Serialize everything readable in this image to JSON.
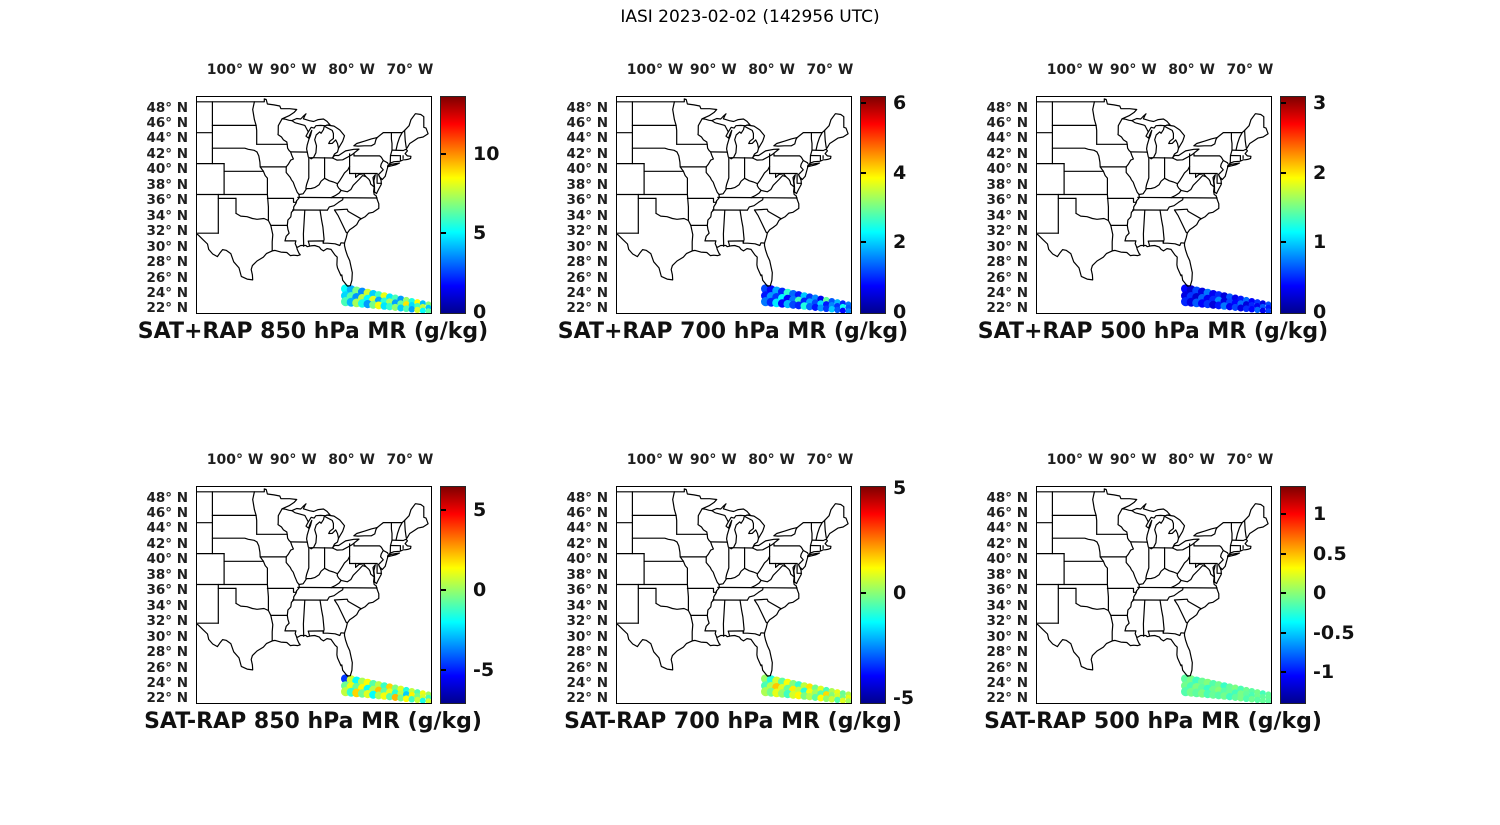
{
  "figure_title": "IASI 2023-02-02 (142956 UTC)",
  "colors": {
    "background": "#ffffff",
    "map_line": "#000000",
    "tick_label": "#1f1f1f",
    "title": "#000000",
    "colormap": "jet"
  },
  "axes": {
    "lon_tick_labels": [
      "100° W",
      "90° W",
      "80° W",
      "70° W"
    ],
    "lon_tick_values_w": [
      100,
      90,
      80,
      70
    ],
    "lat_tick_labels": [
      "48° N",
      "46° N",
      "44° N",
      "42° N",
      "40° N",
      "38° N",
      "36° N",
      "34° N",
      "32° N",
      "30° N",
      "28° N",
      "26° N",
      "24° N",
      "22° N"
    ],
    "lat_tick_values_n": [
      48,
      46,
      44,
      42,
      40,
      38,
      36,
      34,
      32,
      30,
      28,
      26,
      24,
      22
    ],
    "lon_range_w": [
      106.7,
      66.55
    ],
    "lat_range_n": [
      21.67,
      49.62
    ]
  },
  "panels": [
    {
      "title": "SAT+RAP 850 hPa MR (g/kg)",
      "row": 0,
      "col": 0,
      "values_key": "sat_850",
      "colorbar": {
        "min": 0,
        "max": 13.7,
        "ticks": [
          0,
          5,
          10
        ]
      }
    },
    {
      "title": "SAT+RAP 700 hPa MR (g/kg)",
      "row": 0,
      "col": 1,
      "values_key": "sat_700",
      "colorbar": {
        "min": 0,
        "max": 6.2,
        "ticks": [
          0,
          2,
          4,
          6
        ]
      }
    },
    {
      "title": "SAT+RAP 500 hPa MR (g/kg)",
      "row": 0,
      "col": 2,
      "values_key": "sat_500",
      "colorbar": {
        "min": 0,
        "max": 3.1,
        "ticks": [
          0,
          1,
          2,
          3
        ]
      }
    },
    {
      "title": "SAT-RAP 850 hPa MR (g/kg)",
      "row": 1,
      "col": 0,
      "values_key": "diff_850",
      "colorbar": {
        "min": -7.0,
        "max": 6.5,
        "ticks": [
          -5,
          0,
          5
        ]
      }
    },
    {
      "title": "SAT-RAP 700 hPa MR (g/kg)",
      "row": 1,
      "col": 1,
      "values_key": "diff_700",
      "colorbar": {
        "min": -5.2,
        "max": 5.1,
        "ticks": [
          -5,
          0,
          5
        ]
      }
    },
    {
      "title": "SAT-RAP 500 hPa MR (g/kg)",
      "row": 1,
      "col": 2,
      "values_key": "diff_500",
      "colorbar": {
        "min": -1.38,
        "max": 1.36,
        "ticks": [
          -1,
          -0.5,
          0,
          0.5,
          1
        ]
      }
    }
  ],
  "chart_data": {
    "type": "scatter",
    "units": "g/kg",
    "note": "IASI footprint swath southeast of Florida; same footprints in all six panels, colored by jet colormap over each panel colorbar range.",
    "swath": {
      "cols_lon_w": [
        81.2,
        80.25,
        79.31,
        78.36,
        77.41,
        76.47,
        75.52,
        74.57,
        73.63,
        72.68,
        71.73,
        70.79,
        69.84,
        68.89,
        67.95,
        67.0
      ],
      "rows_lat_n": {
        "a": [
          24.8,
          24.67,
          24.53,
          24.4,
          24.27,
          24.13,
          24.0,
          23.87,
          23.73,
          23.6,
          23.47,
          23.33,
          23.2,
          23.07,
          22.93,
          22.8
        ],
        "b": [
          23.9,
          23.8,
          23.69,
          23.59,
          23.49,
          23.38,
          23.28,
          23.18,
          23.08,
          22.97,
          22.87,
          22.77,
          22.66,
          22.56,
          22.46,
          22.35
        ],
        "c": [
          23.15,
          23.07,
          22.98,
          22.9,
          22.82,
          22.73,
          22.65,
          22.57,
          22.48,
          22.4,
          22.32,
          22.23,
          22.15,
          22.07,
          21.98,
          21.9
        ]
      },
      "radius_px": [
        4.6,
        4.49,
        4.37,
        4.26,
        4.15,
        4.03,
        3.92,
        3.81,
        3.69,
        3.58,
        3.47,
        3.35,
        3.24,
        3.13,
        3.01,
        2.9
      ],
      "values": {
        "sat_850": {
          "a": [
            5.2,
            4.1,
            6.8,
            3.6,
            7.9,
            4.5,
            5.9,
            8.3,
            4.9,
            6.1,
            3.8,
            7.2,
            5.5,
            8.6,
            4.3,
            6.9
          ],
          "b": [
            4.6,
            6.3,
            3.7,
            7.6,
            5.1,
            8.1,
            4.0,
            5.7,
            7.3,
            3.9,
            6.5,
            8.9,
            4.7,
            6.0,
            7.7,
            4.4
          ],
          "c": [
            6.1,
            4.2,
            7.4,
            5.4,
            3.8,
            6.7,
            8.4,
            4.8,
            5.8,
            7.1,
            4.5,
            6.2,
            3.9,
            8.0,
            5.2,
            6.4
          ]
        },
        "sat_700": {
          "a": [
            1.2,
            0.8,
            1.8,
            1.0,
            2.6,
            1.4,
            0.9,
            2.0,
            1.1,
            1.6,
            0.7,
            2.9,
            1.3,
            1.9,
            1.0,
            1.5
          ],
          "b": [
            0.9,
            1.7,
            1.1,
            2.3,
            0.8,
            1.5,
            2.7,
            1.0,
            1.8,
            1.2,
            2.1,
            0.9,
            1.6,
            1.1,
            2.4,
            1.3
          ],
          "c": [
            1.5,
            1.0,
            2.2,
            0.8,
            1.9,
            1.2,
            1.0,
            2.5,
            1.4,
            0.9,
            1.7,
            1.1,
            2.0,
            1.3,
            0.8,
            1.6
          ]
        },
        "sat_500": {
          "a": [
            0.4,
            0.25,
            0.6,
            0.3,
            0.75,
            0.35,
            0.5,
            0.28,
            0.65,
            0.33,
            0.45,
            0.7,
            0.38,
            0.55,
            0.3,
            0.62
          ],
          "b": [
            0.3,
            0.55,
            0.25,
            0.68,
            0.35,
            0.5,
            0.8,
            0.3,
            0.6,
            0.4,
            0.72,
            0.28,
            0.5,
            0.35,
            0.65,
            0.45
          ],
          "c": [
            0.5,
            0.3,
            0.66,
            0.38,
            0.55,
            0.28,
            0.45,
            0.75,
            0.35,
            0.6,
            0.3,
            0.52,
            0.4,
            0.7,
            0.33,
            0.58
          ]
        },
        "diff_850": {
          "a": [
            -4.6,
            0.8,
            -1.9,
            0.3,
            1.4,
            -0.8,
            0.5,
            -1.2,
            2.0,
            -0.3,
            1.0,
            -1.5,
            0.6,
            -0.9,
            1.2,
            0.2
          ],
          "b": [
            -0.5,
            1.2,
            -0.6,
            1.5,
            -1.8,
            0.4,
            2.2,
            -0.7,
            1.1,
            -1.4,
            0.5,
            -2.6,
            1.6,
            -0.4,
            0.9,
            -1.0
          ],
          "c": [
            0.6,
            -1.3,
            2.0,
            -0.5,
            1.0,
            -1.9,
            0.3,
            1.3,
            -0.8,
            2.4,
            -0.4,
            1.4,
            -1.1,
            0.7,
            -1.6,
            0.8
          ]
        },
        "diff_700": {
          "a": [
            0.2,
            -1.0,
            0.8,
            -0.4,
            1.2,
            0.0,
            -0.8,
            0.6,
            1.5,
            -0.2,
            0.9,
            -0.6,
            0.4,
            1.0,
            -0.3,
            0.5
          ],
          "b": [
            -0.6,
            0.5,
            1.8,
            0.9,
            -0.3,
            1.4,
            0.6,
            -0.9,
            1.1,
            0.3,
            -0.5,
            1.6,
            0.0,
            0.8,
            -0.2,
            1.0
          ],
          "c": [
            0.4,
            -0.2,
            1.0,
            0.2,
            -0.7,
            0.8,
            1.3,
            -0.1,
            0.5,
            -0.4,
            1.2,
            0.1,
            0.7,
            -0.5,
            0.9,
            0.3
          ]
        },
        "diff_500": {
          "a": [
            -0.1,
            -0.03,
            -0.18,
            -0.07,
            0.0,
            -0.13,
            -0.05,
            -0.2,
            -0.08,
            -0.02,
            -0.15,
            -0.06,
            -0.11,
            -0.04,
            -0.17,
            -0.09
          ],
          "b": [
            -0.05,
            -0.15,
            -0.01,
            -0.1,
            -0.19,
            -0.06,
            0.01,
            -0.12,
            -0.07,
            -0.17,
            -0.03,
            -0.09,
            -0.15,
            -0.05,
            -0.1,
            -0.08
          ],
          "c": [
            -0.13,
            -0.04,
            -0.1,
            -0.02,
            -0.15,
            -0.07,
            -0.12,
            -0.05,
            -0.18,
            -0.09,
            -0.03,
            -0.14,
            -0.06,
            -0.11,
            -0.08,
            -0.1
          ]
        }
      }
    }
  }
}
